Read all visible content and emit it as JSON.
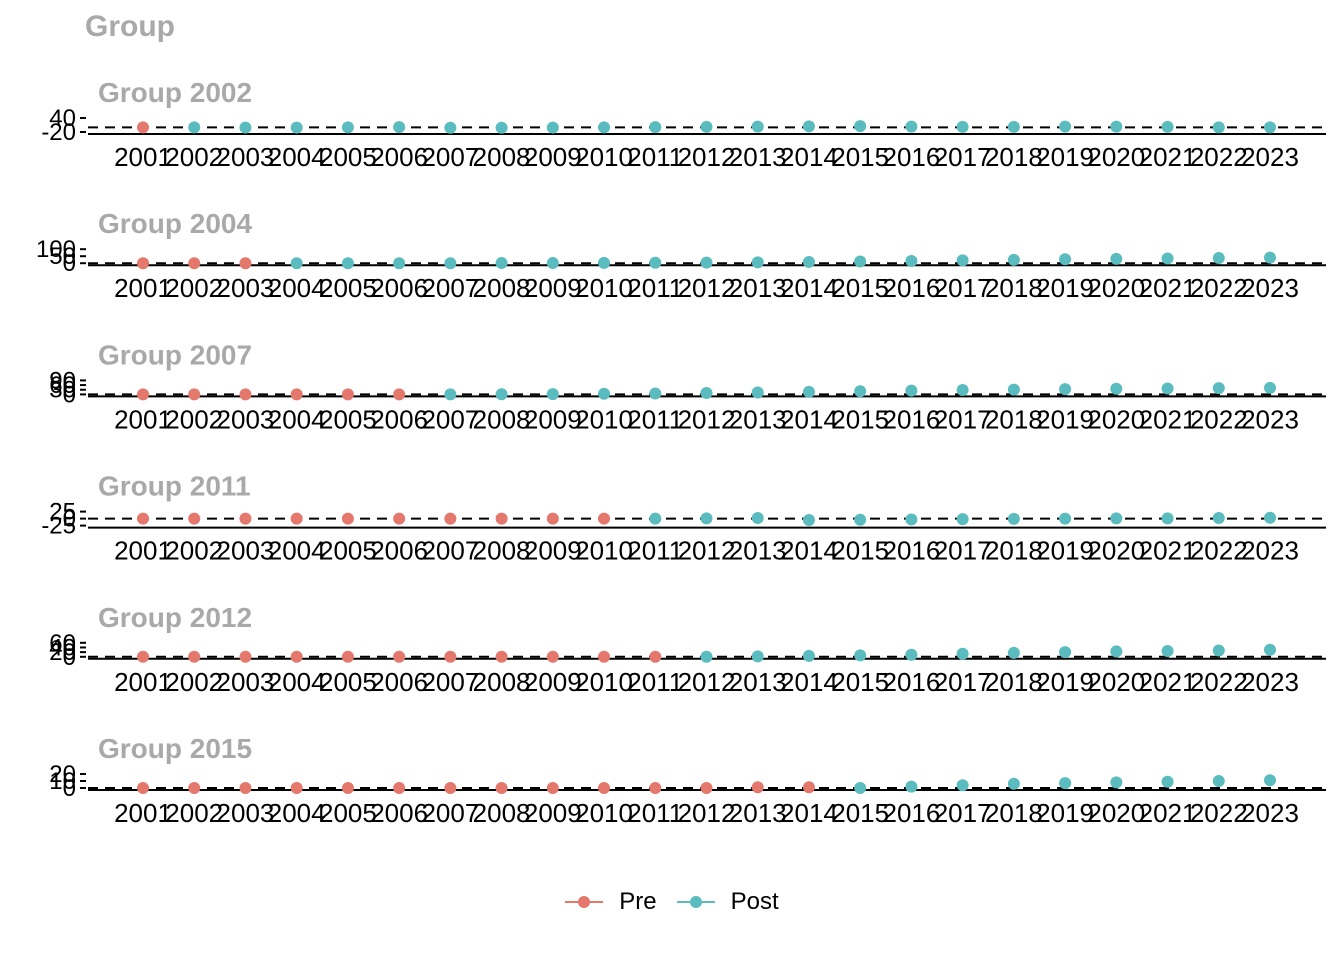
{
  "title": "Group",
  "legend": {
    "items": [
      {
        "label": "Pre",
        "color": "#E5786C"
      },
      {
        "label": "Post",
        "color": "#5BBCBF"
      }
    ]
  },
  "chart_data": [
    {
      "type": "scatter",
      "title": "Group 2002",
      "treatment_year": 2002,
      "x": [
        2001,
        2002,
        2003,
        2004,
        2005,
        2006,
        2007,
        2008,
        2009,
        2010,
        2011,
        2012,
        2013,
        2014,
        2015,
        2016,
        2017,
        2018,
        2019,
        2020,
        2021,
        2022,
        2023
      ],
      "y": [
        0,
        0,
        -1,
        -1,
        0,
        1,
        -2,
        -2,
        -1,
        0,
        1,
        2,
        3,
        4,
        5,
        3,
        2,
        2,
        3,
        3,
        2,
        0,
        0
      ],
      "yticks": [
        -20,
        40
      ],
      "ylim": [
        -20,
        40
      ],
      "hline": 0
    },
    {
      "type": "scatter",
      "title": "Group 2004",
      "treatment_year": 2004,
      "x": [
        2001,
        2002,
        2003,
        2004,
        2005,
        2006,
        2007,
        2008,
        2009,
        2010,
        2011,
        2012,
        2013,
        2014,
        2015,
        2016,
        2017,
        2018,
        2019,
        2020,
        2021,
        2022,
        2023
      ],
      "y": [
        0,
        0,
        0,
        0,
        0,
        0,
        0,
        1,
        1,
        2,
        3,
        4,
        6,
        9,
        12,
        16,
        20,
        24,
        28,
        31,
        34,
        37,
        40
      ],
      "yticks": [
        0,
        50,
        100
      ],
      "ylim": [
        0,
        100
      ],
      "hline": 0
    },
    {
      "type": "scatter",
      "title": "Group 2007",
      "treatment_year": 2007,
      "x": [
        2001,
        2002,
        2003,
        2004,
        2005,
        2006,
        2007,
        2008,
        2009,
        2010,
        2011,
        2012,
        2013,
        2014,
        2015,
        2016,
        2017,
        2018,
        2019,
        2020,
        2021,
        2022,
        2023
      ],
      "y": [
        0,
        0,
        0,
        0,
        0,
        0,
        0,
        1,
        2,
        4,
        6,
        9,
        12,
        16,
        20,
        24,
        28,
        31,
        34,
        36,
        38,
        40,
        42
      ],
      "yticks": [
        0,
        30,
        60,
        90
      ],
      "ylim": [
        0,
        90
      ],
      "hline": 0
    },
    {
      "type": "scatter",
      "title": "Group 2011",
      "treatment_year": 2011,
      "x": [
        2001,
        2002,
        2003,
        2004,
        2005,
        2006,
        2007,
        2008,
        2009,
        2010,
        2011,
        2012,
        2013,
        2014,
        2015,
        2016,
        2017,
        2018,
        2019,
        2020,
        2021,
        2022,
        2023
      ],
      "y": [
        0,
        0,
        0,
        0,
        0,
        0,
        0,
        0,
        0,
        0,
        0,
        1,
        2,
        -5,
        -4,
        -3,
        -2,
        -1,
        0,
        1,
        1,
        2,
        3
      ],
      "yticks": [
        -25,
        0,
        25
      ],
      "ylim": [
        -25,
        25
      ],
      "hline": 0
    },
    {
      "type": "scatter",
      "title": "Group 2012",
      "treatment_year": 2012,
      "x": [
        2001,
        2002,
        2003,
        2004,
        2005,
        2006,
        2007,
        2008,
        2009,
        2010,
        2011,
        2012,
        2013,
        2014,
        2015,
        2016,
        2017,
        2018,
        2019,
        2020,
        2021,
        2022,
        2023
      ],
      "y": [
        0,
        0,
        0,
        0,
        0,
        0,
        0,
        0,
        0,
        0,
        0,
        0,
        2,
        4,
        6,
        9,
        13,
        17,
        20,
        23,
        25,
        27,
        30
      ],
      "yticks": [
        0,
        20,
        40,
        60
      ],
      "ylim": [
        0,
        60
      ],
      "hline": 0
    },
    {
      "type": "scatter",
      "title": "Group 2015",
      "treatment_year": 2015,
      "x": [
        2001,
        2002,
        2003,
        2004,
        2005,
        2006,
        2007,
        2008,
        2009,
        2010,
        2011,
        2012,
        2013,
        2014,
        2015,
        2016,
        2017,
        2018,
        2019,
        2020,
        2021,
        2022,
        2023
      ],
      "y": [
        0,
        0,
        0,
        0,
        0,
        0,
        0,
        0,
        0,
        0,
        0,
        0,
        1,
        1,
        0,
        2,
        4,
        6,
        7,
        8,
        9,
        10,
        11
      ],
      "yticks": [
        0,
        10,
        20
      ],
      "ylim": [
        0,
        20
      ],
      "hline": 0
    }
  ]
}
